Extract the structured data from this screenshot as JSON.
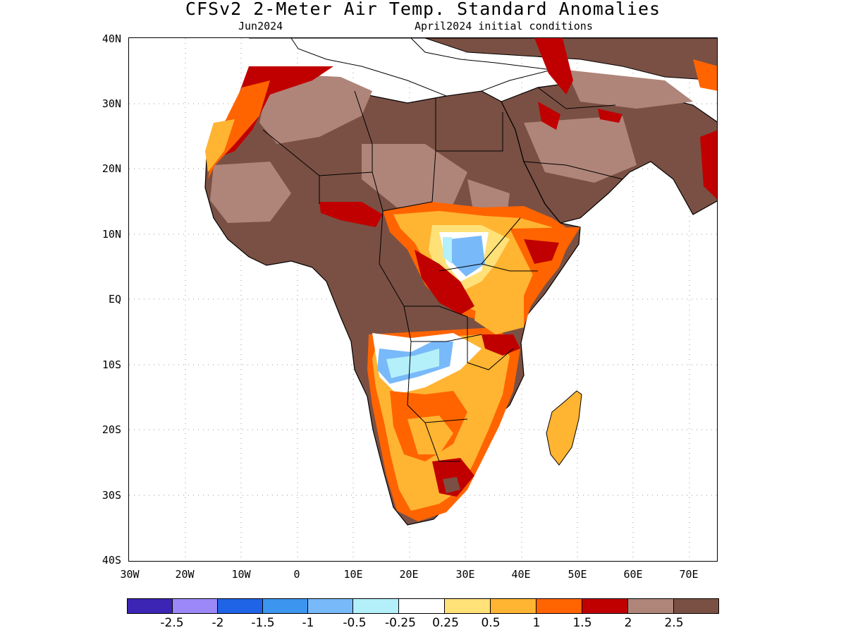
{
  "title": "CFSv2 2-Meter Air Temp. Standard Anomalies",
  "subtitle_left": "Jun2024",
  "subtitle_right": "April2024 initial conditions",
  "axes": {
    "lat_labels": [
      "40N",
      "30N",
      "20N",
      "10N",
      "EQ",
      "10S",
      "20S",
      "30S",
      "40S"
    ],
    "lon_labels": [
      "30W",
      "20W",
      "10W",
      "0",
      "10E",
      "20E",
      "30E",
      "40E",
      "50E",
      "60E",
      "70E"
    ],
    "lat_range": [
      -40,
      40
    ],
    "lon_range": [
      -30,
      75
    ],
    "grid": "dotted"
  },
  "colorbar": {
    "colors": [
      "#3c24b4",
      "#9c88f7",
      "#1f64e6",
      "#3c96f0",
      "#78b9fa",
      "#b4f0fa",
      "#ffffff",
      "#ffe178",
      "#ffb432",
      "#ff6400",
      "#c00000",
      "#af857a",
      "#7a5044"
    ],
    "labels": [
      "-2.5",
      "-2",
      "-1.5",
      "-1",
      "-0.5",
      "-0.25",
      "0.25",
      "0.5",
      "1",
      "1.5",
      "2",
      "2.5"
    ]
  },
  "map_colors": {
    "land": "#7a5044",
    "land_light": "#af857a",
    "red": "#c00000",
    "orange_dark": "#ff6400",
    "orange": "#ffb432",
    "yellow": "#ffe178",
    "blue_light": "#b4f0fa",
    "blue": "#78b9fa"
  }
}
